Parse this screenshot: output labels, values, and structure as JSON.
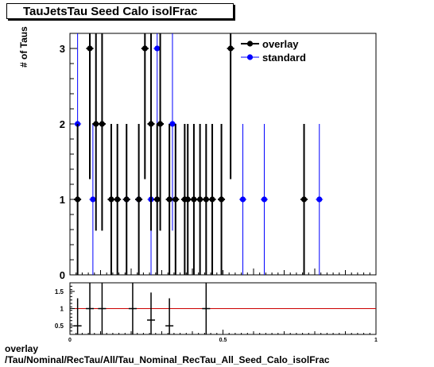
{
  "title": "TauJetsTau Seed Calo isolFrac",
  "footer_line1": "overlay",
  "footer_line2": "/Tau/Nominal/RecTau/All/Tau_Nominal_RecTau_All_Seed_Calo_isolFrac",
  "chart_data": [
    {
      "type": "scatter",
      "title": "TauJetsTau Seed Calo isolFrac",
      "xlabel": "",
      "ylabel": "# of Taus",
      "xlim": [
        0,
        1
      ],
      "ylim": [
        0,
        3.2
      ],
      "y_ticks": [
        0,
        1,
        2,
        3
      ],
      "x_ticks_labeled": [],
      "legend_position": "top-right",
      "series": [
        {
          "name": "overlay",
          "color": "#000000",
          "x": [
            0.025,
            0.065,
            0.085,
            0.105,
            0.135,
            0.155,
            0.185,
            0.225,
            0.245,
            0.265,
            0.285,
            0.295,
            0.325,
            0.345,
            0.375,
            0.385,
            0.405,
            0.425,
            0.445,
            0.465,
            0.495,
            0.525,
            0.765
          ],
          "y": [
            1,
            3,
            2,
            2,
            1,
            1,
            1,
            1,
            3,
            2,
            1,
            2,
            1,
            1,
            1,
            1,
            1,
            1,
            1,
            1,
            1,
            3,
            1
          ]
        },
        {
          "name": "standard",
          "color": "#0000ff",
          "x": [
            0.025,
            0.075,
            0.185,
            0.225,
            0.265,
            0.285,
            0.335,
            0.565,
            0.635,
            0.815
          ],
          "y": [
            2,
            1,
            1,
            1,
            1,
            3,
            2,
            1,
            1,
            1
          ]
        }
      ]
    },
    {
      "type": "scatter",
      "title": "",
      "xlabel": "",
      "ylabel": "",
      "xlim": [
        0,
        1
      ],
      "ylim": [
        0.25,
        1.75
      ],
      "y_ticks": [
        0.5,
        1,
        1.5
      ],
      "y_tick_labels": [
        "0.5",
        "1",
        "1.5"
      ],
      "x_ticks": [
        0,
        0.5,
        1
      ],
      "x_tick_labels": [
        "0",
        "0.5",
        "1"
      ],
      "reference_line": {
        "y": 1,
        "color": "#cc0000"
      },
      "series": [
        {
          "name": "",
          "color": "#000000",
          "x": [
            0.025,
            0.065,
            0.105,
            0.205,
            0.265,
            0.325,
            0.445
          ],
          "y": [
            0.5,
            1.0,
            1.0,
            1.0,
            0.667,
            0.5,
            1.0
          ]
        }
      ]
    }
  ]
}
